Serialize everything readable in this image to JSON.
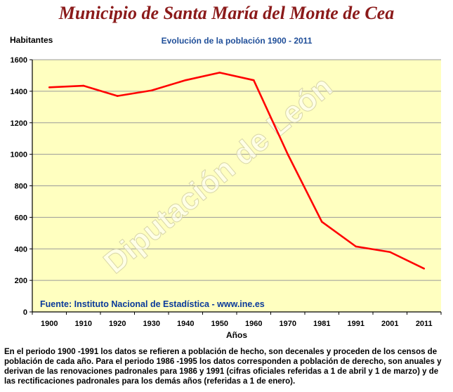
{
  "page": {
    "title": "Municipio de Santa María del Monte de Cea",
    "footnote": "En el periodo 1900 -1991 los datos se refieren a población de hecho, son decenales y proceden de los censos de población de cada año. Para el periodo 1986 -1995 los datos corresponden a población de derecho, son anuales y derivan de las renovaciones padronales para 1986 y 1991 (cifras oficiales referidas a 1 de abril y 1 de marzo) y de las rectificaciones padronales para los demás años (referidas a 1 de enero)."
  },
  "chart_data": {
    "type": "line",
    "title": "Evolución de la población 1900 - 2011",
    "ylabel": "Habitantes",
    "xlabel": "Años",
    "source": "Fuente: Instituto Nacional de Estadística - www.ine.es",
    "watermark": "Diputación de León",
    "categories": [
      "1900",
      "1910",
      "1920",
      "1930",
      "1940",
      "1950",
      "1960",
      "1970",
      "1981",
      "1991",
      "2001",
      "2011"
    ],
    "series": [
      {
        "values": [
          1425,
          1435,
          1370,
          1405,
          1470,
          1518,
          1470,
          1000,
          572,
          415,
          380,
          275
        ],
        "color": "#ff0000"
      }
    ],
    "ylim": [
      0,
      1600
    ],
    "yticks": [
      0,
      200,
      400,
      600,
      800,
      1000,
      1200,
      1400,
      1600
    ],
    "grid": true,
    "legend": "none",
    "colors": {
      "plot_background": "#ffffc0",
      "gridline": "#9a9a9a",
      "title": "#1f4e99",
      "source": "#0a3a9a",
      "line": "#ff0000",
      "page_title": "#8b1a1a"
    }
  }
}
